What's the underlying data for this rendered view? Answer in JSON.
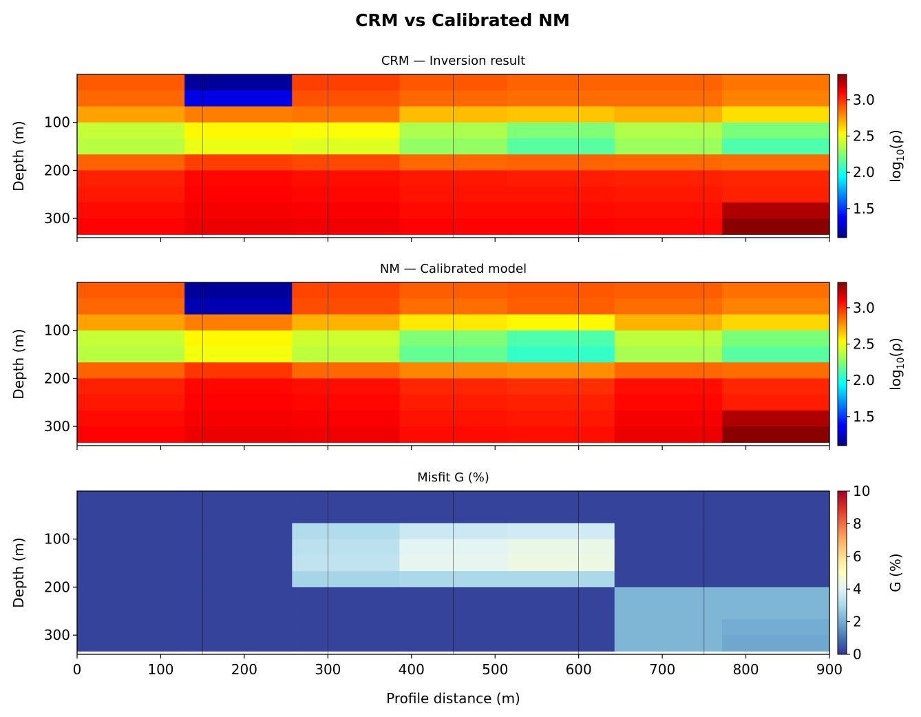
{
  "figure_title": "CRM vs Calibrated NM",
  "chart_data": [
    {
      "type": "heatmap",
      "title": "CRM — Inversion result",
      "xlabel": "",
      "ylabel": "Depth (m)",
      "xlim": [
        0,
        900
      ],
      "ylim_inverted": [
        340,
        0
      ],
      "x_edges": [
        0,
        128.57,
        257.14,
        385.71,
        514.29,
        642.86,
        771.43,
        900
      ],
      "y_edges": [
        0,
        33.3,
        66.7,
        100,
        133.3,
        166.7,
        200,
        233.3,
        266.7,
        300,
        333.3
      ],
      "vertical_lines_x": [
        150,
        300,
        450,
        600,
        750
      ],
      "y_ticks": [
        100,
        200,
        300
      ],
      "x_ticks": [
        0,
        100,
        200,
        300,
        400,
        500,
        600,
        700,
        800,
        900
      ],
      "show_x_tick_labels": false,
      "colormap": "jet",
      "color_range": [
        1.1,
        3.35
      ],
      "colorbar_label": "log10(ρ)",
      "colorbar_ticks": [
        1.5,
        2.0,
        2.5,
        3.0
      ],
      "colorbar_tick_labels": [
        "1.5",
        "2.0",
        "2.5",
        "3.0"
      ],
      "values": [
        [
          2.9,
          1.15,
          2.96,
          2.91,
          2.88,
          2.88,
          2.84
        ],
        [
          2.87,
          1.3,
          2.92,
          2.87,
          2.86,
          2.86,
          2.81
        ],
        [
          2.74,
          2.82,
          2.84,
          2.68,
          2.66,
          2.7,
          2.6
        ],
        [
          2.4,
          2.55,
          2.53,
          2.34,
          2.23,
          2.35,
          2.22
        ],
        [
          2.37,
          2.49,
          2.46,
          2.28,
          2.14,
          2.3,
          2.12
        ],
        [
          2.88,
          2.96,
          2.94,
          2.87,
          2.88,
          2.87,
          2.86
        ],
        [
          3.03,
          3.09,
          3.07,
          3.05,
          3.04,
          3.03,
          3.02
        ],
        [
          3.05,
          3.1,
          3.09,
          3.06,
          3.06,
          3.05,
          3.03
        ],
        [
          3.08,
          3.12,
          3.11,
          3.08,
          3.08,
          3.07,
          3.26
        ],
        [
          3.1,
          3.14,
          3.13,
          3.1,
          3.1,
          3.09,
          3.33
        ]
      ]
    },
    {
      "type": "heatmap",
      "title": "NM — Calibrated model",
      "xlabel": "",
      "ylabel": "Depth (m)",
      "xlim": [
        0,
        900
      ],
      "ylim_inverted": [
        340,
        0
      ],
      "x_edges": [
        0,
        128.57,
        257.14,
        385.71,
        514.29,
        642.86,
        771.43,
        900
      ],
      "y_edges": [
        0,
        33.3,
        66.7,
        100,
        133.3,
        166.7,
        200,
        233.3,
        266.7,
        300,
        333.3
      ],
      "vertical_lines_x": [
        150,
        300,
        450,
        600,
        750
      ],
      "y_ticks": [
        100,
        200,
        300
      ],
      "x_ticks": [
        0,
        100,
        200,
        300,
        400,
        500,
        600,
        700,
        800,
        900
      ],
      "show_x_tick_labels": false,
      "colormap": "jet",
      "color_range": [
        1.1,
        3.35
      ],
      "colorbar_label": "log10(ρ)",
      "colorbar_ticks": [
        1.5,
        2.0,
        2.5,
        3.0
      ],
      "colorbar_tick_labels": [
        "1.5",
        "2.0",
        "2.5",
        "3.0"
      ],
      "values": [
        [
          2.9,
          1.15,
          2.95,
          2.89,
          2.91,
          2.89,
          2.85
        ],
        [
          2.87,
          1.2,
          2.93,
          2.86,
          2.89,
          2.86,
          2.81
        ],
        [
          2.74,
          2.82,
          2.7,
          2.58,
          2.55,
          2.7,
          2.62
        ],
        [
          2.4,
          2.55,
          2.42,
          2.23,
          2.12,
          2.38,
          2.22
        ],
        [
          2.37,
          2.51,
          2.38,
          2.17,
          2.06,
          2.33,
          2.14
        ],
        [
          2.88,
          2.98,
          2.87,
          2.8,
          2.78,
          2.87,
          2.86
        ],
        [
          3.03,
          3.09,
          3.07,
          3.02,
          3.0,
          3.07,
          3.02
        ],
        [
          3.05,
          3.1,
          3.09,
          3.04,
          3.03,
          3.09,
          3.04
        ],
        [
          3.08,
          3.12,
          3.11,
          3.06,
          3.05,
          3.12,
          3.26
        ],
        [
          3.1,
          3.14,
          3.13,
          3.08,
          3.07,
          3.14,
          3.33
        ]
      ]
    },
    {
      "type": "heatmap",
      "title": "Misfit G (%)",
      "xlabel": "Profile distance (m)",
      "ylabel": "Depth (m)",
      "xlim": [
        0,
        900
      ],
      "ylim_inverted": [
        340,
        0
      ],
      "x_edges": [
        0,
        128.57,
        257.14,
        385.71,
        514.29,
        642.86,
        771.43,
        900
      ],
      "y_edges": [
        0,
        33.3,
        66.7,
        100,
        133.3,
        166.7,
        200,
        233.3,
        266.7,
        300,
        333.3
      ],
      "vertical_lines_x": [
        150,
        300,
        450,
        600,
        750
      ],
      "y_ticks": [
        100,
        200,
        300
      ],
      "x_ticks": [
        0,
        100,
        200,
        300,
        400,
        500,
        600,
        700,
        800,
        900
      ],
      "x_tick_labels": [
        "0",
        "100",
        "200",
        "300",
        "400",
        "500",
        "600",
        "700",
        "800",
        "900"
      ],
      "show_x_tick_labels": true,
      "colormap": "RdYlBu_r",
      "color_range": [
        0,
        10
      ],
      "colorbar_label": "G (%)",
      "colorbar_ticks": [
        0,
        2,
        4,
        6,
        8,
        10
      ],
      "colorbar_tick_labels": [
        "0",
        "2",
        "4",
        "6",
        "8",
        "10"
      ],
      "values": [
        [
          0.2,
          0.2,
          0.2,
          0.2,
          0.2,
          0.2,
          0.2
        ],
        [
          0.2,
          0.2,
          0.2,
          0.2,
          0.2,
          0.2,
          0.2
        ],
        [
          0.2,
          0.2,
          3.1,
          3.6,
          3.7,
          0.2,
          0.2
        ],
        [
          0.2,
          0.2,
          3.3,
          4.1,
          4.3,
          0.2,
          0.2
        ],
        [
          0.2,
          0.2,
          3.4,
          4.2,
          4.4,
          0.2,
          0.2
        ],
        [
          0.2,
          0.2,
          2.9,
          3.0,
          3.0,
          0.2,
          0.2
        ],
        [
          0.2,
          0.2,
          0.2,
          0.2,
          0.2,
          2.2,
          2.2
        ],
        [
          0.2,
          0.2,
          0.2,
          0.2,
          0.2,
          2.2,
          2.2
        ],
        [
          0.2,
          0.2,
          0.2,
          0.2,
          0.2,
          2.2,
          2.0
        ],
        [
          0.2,
          0.2,
          0.2,
          0.2,
          0.2,
          2.2,
          1.9
        ]
      ]
    }
  ]
}
